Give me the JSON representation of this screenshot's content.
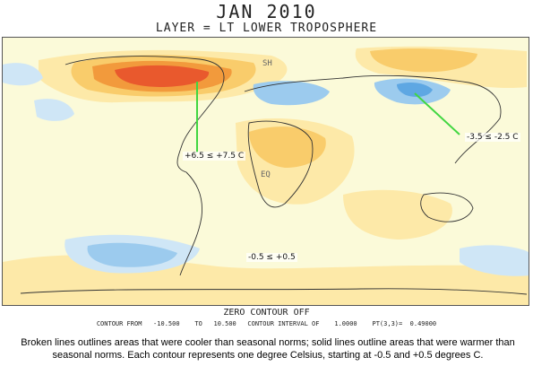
{
  "title": "JAN 2010",
  "subtitle": "LAYER = LT LOWER TROPOSPHERE",
  "map": {
    "labels": {
      "n_america": "+6.5 ≤ +7.5 C",
      "asia": "-3.5 ≤ -2.5 C",
      "south_pacific": "-0.5 ≤ +0.5",
      "equator": "EQ",
      "north": "SH"
    },
    "colors": {
      "background": "#fbfad9",
      "warm_light": "#fde9a8",
      "warm_mid": "#f9cc6b",
      "warm_strong": "#f29a3c",
      "hot": "#e9592d",
      "cool_light": "#cfe6f6",
      "cool_mid": "#9ccbee",
      "cool_strong": "#5ea7e3",
      "annotation_line": "#41d641"
    }
  },
  "footer": {
    "zero_contour": "ZERO CONTOUR OFF",
    "contour_info": "CONTOUR FROM   -10.500    TO   10.500   CONTOUR INTERVAL OF    1.0000    PT(3,3)=  0.49000"
  },
  "note": "Broken lines outlines areas that were cooler than seasonal norms; solid lines outline areas that were warmer than seasonal norms. Each contour represents one degree Celsius, starting at -0.5 and +0.5 degrees C."
}
